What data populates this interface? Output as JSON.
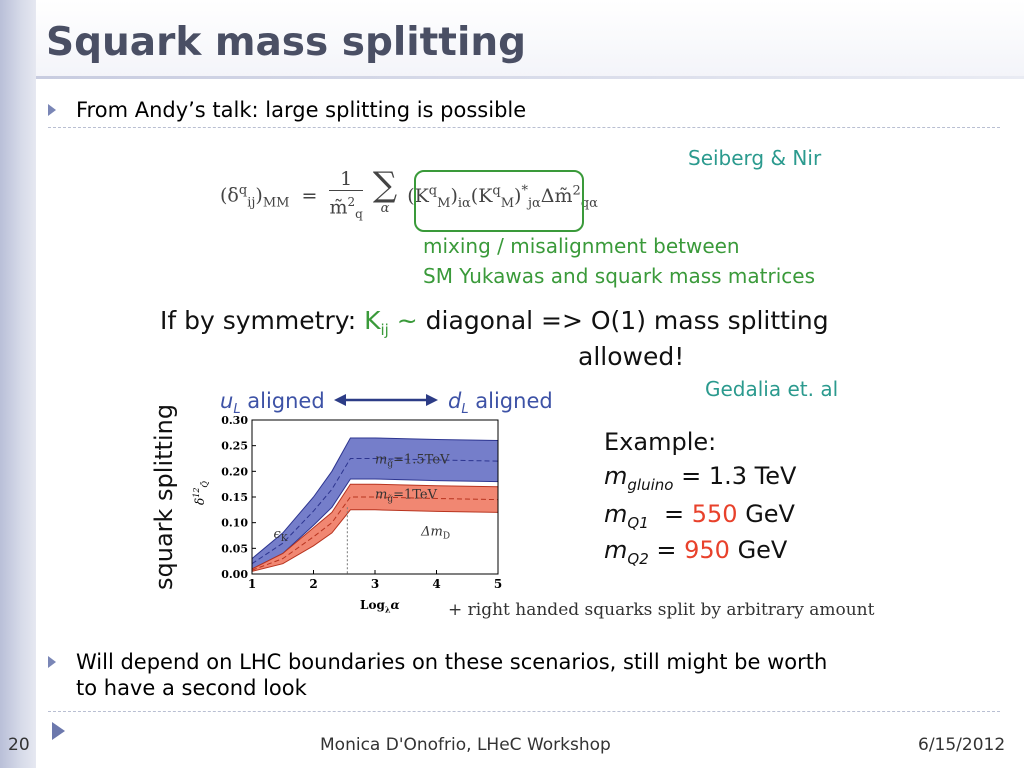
{
  "slide": {
    "title": "Squark mass splitting",
    "bullet1": "From Andy’s talk: large splitting is possible",
    "bullet2_line1": "Will depend on LHC boundaries on these scenarios, still might be worth",
    "bullet2_line2": "to have a second look"
  },
  "formula": {
    "citation": "Seiberg & Nir",
    "lhs": "(δ",
    "lhs_sup": "q",
    "lhs_sub": "ij",
    "lhs_rest": ")",
    "lhs_index": "MM",
    "eq": "=",
    "frac_num": "1",
    "frac_den": "m̃",
    "frac_den_sup": "2",
    "frac_den_sub": "q",
    "sum": "∑",
    "sum_index": "α",
    "term1": "(K",
    "term1_sup": "q",
    "term1_sub": "M",
    "term1_rest": ")",
    "term1_idx": "iα",
    "term2": "(K",
    "term2_sup": "q",
    "term2_sub": "M",
    "term2_rest": ")",
    "term2_sup2": "*",
    "term2_idx": "jα",
    "tail": "Δm̃",
    "tail_sup": "2",
    "tail_sub": "qα",
    "note_line1": "mixing / misalignment between",
    "note_line2": "SM Yukawas and squark mass matrices"
  },
  "symmetry": {
    "prefix": "If by symmetry: ",
    "k": "K",
    "k_sub": "ij",
    "tilde": " ~",
    "rest": " diagonal  => O(1) mass splitting",
    "line2": "allowed!",
    "citation": "Gedalia et. al"
  },
  "figure": {
    "ylabel_big": "squark splitting",
    "uL": "u",
    "uL_sub": "L",
    "uL_rest": " aligned",
    "dL": "d",
    "dL_sub": "L",
    "dL_rest": " aligned",
    "upper_band_label": "m",
    "upper_band_sub": "g̃",
    "upper_band_val": "=1.5TeV",
    "lower_band_label": "m",
    "lower_band_sub": "g̃",
    "lower_band_val": "=1TeV",
    "epsK": "ϵ",
    "epsK_sub": "K",
    "dmD": "Δm",
    "dmD_sub": "D",
    "ylabel_small": "δ",
    "ylabel_small_sup": "12",
    "ylabel_small_sub": "Q̃",
    "xlabel": "Log",
    "xlabel_sub": "λ",
    "xlabel_rest": "α",
    "caption": "+ right handed squarks split by arbitrary amount",
    "colors": {
      "upper": "#6670c4",
      "lower": "#f07a63",
      "axis": "#000000"
    }
  },
  "chart_data": {
    "type": "area",
    "title": "",
    "xlabel": "Log_λ α",
    "ylabel": "δ^12_Q̃",
    "xlim": [
      1,
      5
    ],
    "ylim": [
      0,
      0.3
    ],
    "x_ticks": [
      "1",
      "2",
      "3",
      "4",
      "5"
    ],
    "y_ticks": [
      "0.00",
      "0.05",
      "0.10",
      "0.15",
      "0.20",
      "0.25",
      "0.30"
    ],
    "x": [
      1.0,
      1.5,
      2.0,
      2.3,
      2.6,
      3.0,
      4.0,
      5.0
    ],
    "series": [
      {
        "name": "m_g̃=1.5TeV",
        "upper": [
          0.03,
          0.08,
          0.15,
          0.2,
          0.265,
          0.265,
          0.262,
          0.26
        ],
        "lower": [
          0.01,
          0.04,
          0.095,
          0.13,
          0.185,
          0.185,
          0.182,
          0.18
        ]
      },
      {
        "name": "m_g̃=1TeV",
        "upper": [
          0.01,
          0.04,
          0.09,
          0.12,
          0.175,
          0.175,
          0.172,
          0.17
        ],
        "lower": [
          0.005,
          0.02,
          0.055,
          0.08,
          0.125,
          0.125,
          0.122,
          0.12
        ]
      }
    ],
    "annotations": [
      "ϵ_K",
      "Δm_D"
    ]
  },
  "example": {
    "heading": "Example:",
    "line1_m": "m",
    "line1_sub": "gluino",
    "line1_val": " = 1.3 TeV",
    "line2_m": "m",
    "line2_sub": "Q1",
    "line2_eq": "  = ",
    "line2_num": "550",
    "line2_unit": " GeV",
    "line3_m": "m",
    "line3_sub": "Q2",
    "line3_eq": " = ",
    "line3_num": "950",
    "line3_unit": " GeV"
  },
  "footer": {
    "page": "20",
    "center": "Monica D'Onofrio, LHeC Workshop",
    "date": "6/15/2012"
  }
}
